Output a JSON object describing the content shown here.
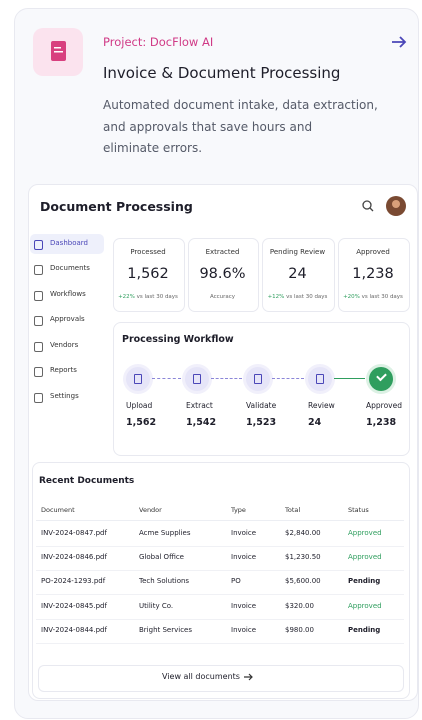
{
  "header": {
    "project": "Project: DocFlow AI",
    "title": "Invoice & Document Processing",
    "description": [
      "Automated document intake, data extraction,",
      "and approvals that save hours and",
      "eliminate errors."
    ]
  },
  "dashboard": {
    "title": "Document Processing",
    "sidebar": [
      "Dashboard",
      "Documents",
      "Workflows",
      "Approvals",
      "Vendors",
      "Reports",
      "Settings"
    ],
    "stats": [
      {
        "label": "Processed",
        "value": "1,562",
        "change": "+22%",
        "note": "vs last 30 days"
      },
      {
        "label": "Extracted",
        "value": "98.6%",
        "note": "Accuracy"
      },
      {
        "label": "Pending Review",
        "value": "24",
        "change": "+12%",
        "note": "vs last 30 days"
      },
      {
        "label": "Approved",
        "value": "1,238",
        "change": "+20%",
        "note": "vs last 30 days"
      }
    ],
    "workflow": {
      "title": "Processing Workflow",
      "steps": [
        {
          "label": "Upload",
          "value": "1,562"
        },
        {
          "label": "Extract",
          "value": "1,542"
        },
        {
          "label": "Validate",
          "value": "1,523"
        },
        {
          "label": "Review",
          "value": "24"
        },
        {
          "label": "Approved",
          "value": "1,238"
        }
      ]
    },
    "recent": {
      "title": "Recent Documents",
      "columns": [
        "Document",
        "Vendor",
        "Type",
        "Total",
        "Status"
      ],
      "rows": [
        {
          "cells": [
            "INV-2024-0847.pdf",
            "Acme Supplies",
            "Invoice",
            "$2,840.00",
            "Approved"
          ],
          "status_color": "#2f9e5e"
        },
        {
          "cells": [
            "INV-2024-0846.pdf",
            "Global Office",
            "Invoice",
            "$1,230.50",
            "Approved"
          ],
          "status_color": "#2f9e5e"
        },
        {
          "cells": [
            "PO-2024-1293.pdf",
            "Tech Solutions",
            "PO",
            "$5,600.00",
            "Pending"
          ],
          "status_color": "#1e1e2a"
        },
        {
          "cells": [
            "INV-2024-0845.pdf",
            "Utility Co.",
            "Invoice",
            "$320.00",
            "Approved"
          ],
          "status_color": "#2f9e5e"
        },
        {
          "cells": [
            "INV-2024-0844.pdf",
            "Bright Services",
            "Invoice",
            "$980.00",
            "Pending"
          ],
          "status_color": "#1e1e2a"
        }
      ],
      "button": "View all documents"
    }
  }
}
